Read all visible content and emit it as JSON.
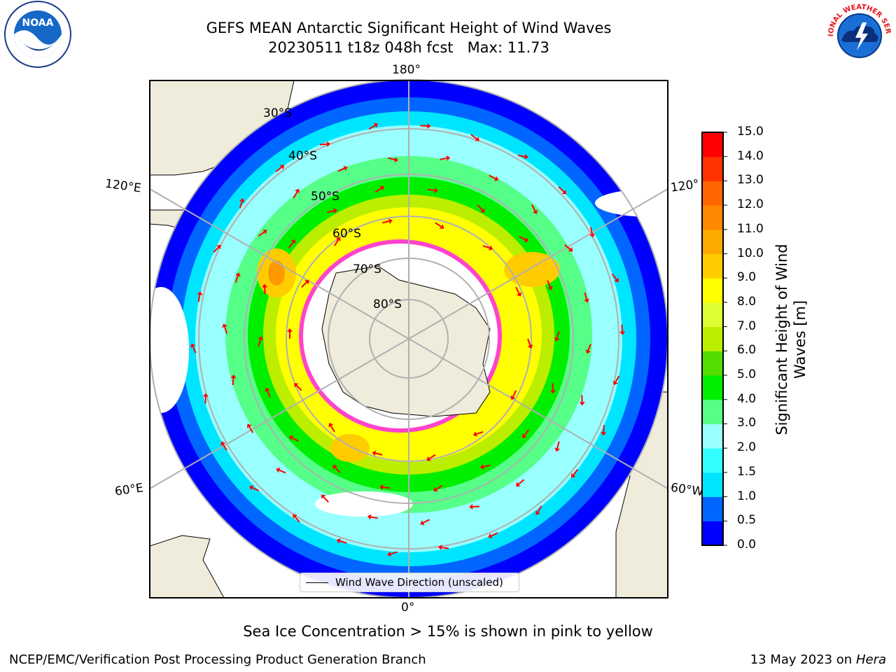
{
  "title": {
    "line1": "GEFS MEAN Antarctic Significant Height of Wind Waves",
    "line2": "20230511 t18z 048h fcst   Max: 11.73"
  },
  "map": {
    "meridian_labels": {
      "top": "180°",
      "bottom": "0°",
      "upper_left": "120°E",
      "lower_left": "60°E",
      "upper_right": "120°",
      "lower_right": "60°W"
    },
    "parallel_labels": [
      "30°S",
      "40°S",
      "50°S",
      "60°S",
      "70°S",
      "80°S"
    ],
    "legend_label": "Wind Wave Direction (unscaled)",
    "colors": {
      "land": "#efecdc",
      "ice_outline": "#ff44cc",
      "arrow": "#ff0000",
      "grid": "#b0b0b0"
    }
  },
  "colorbar": {
    "label": "Significant Height of Wind Waves [m]",
    "ticks": [
      "0.0",
      "0.5",
      "1.0",
      "1.5",
      "2.0",
      "3.0",
      "4.0",
      "5.0",
      "6.0",
      "7.0",
      "8.0",
      "9.0",
      "10.0",
      "11.0",
      "12.0",
      "13.0",
      "14.0",
      "15.0"
    ],
    "colors": [
      "#0000ff",
      "#0066ff",
      "#00e5ff",
      "#33ffff",
      "#99ffff",
      "#55ff88",
      "#00ee00",
      "#55dd00",
      "#bbee00",
      "#ddff33",
      "#ffff00",
      "#ffcc00",
      "#ffaa00",
      "#ff8800",
      "#ff6600",
      "#ff3300",
      "#ff0000"
    ]
  },
  "caption": "Sea Ice Concentration > 15% is shown in pink to yellow",
  "footer": {
    "left": "NCEP/EMC/Verification Post Processing Product Generation Branch",
    "date": "13 May 2023 on",
    "machine": "Hera"
  },
  "logos": {
    "noaa_text": "NOAA",
    "nws_text": "NATIONAL WEATHER SERVICE"
  }
}
